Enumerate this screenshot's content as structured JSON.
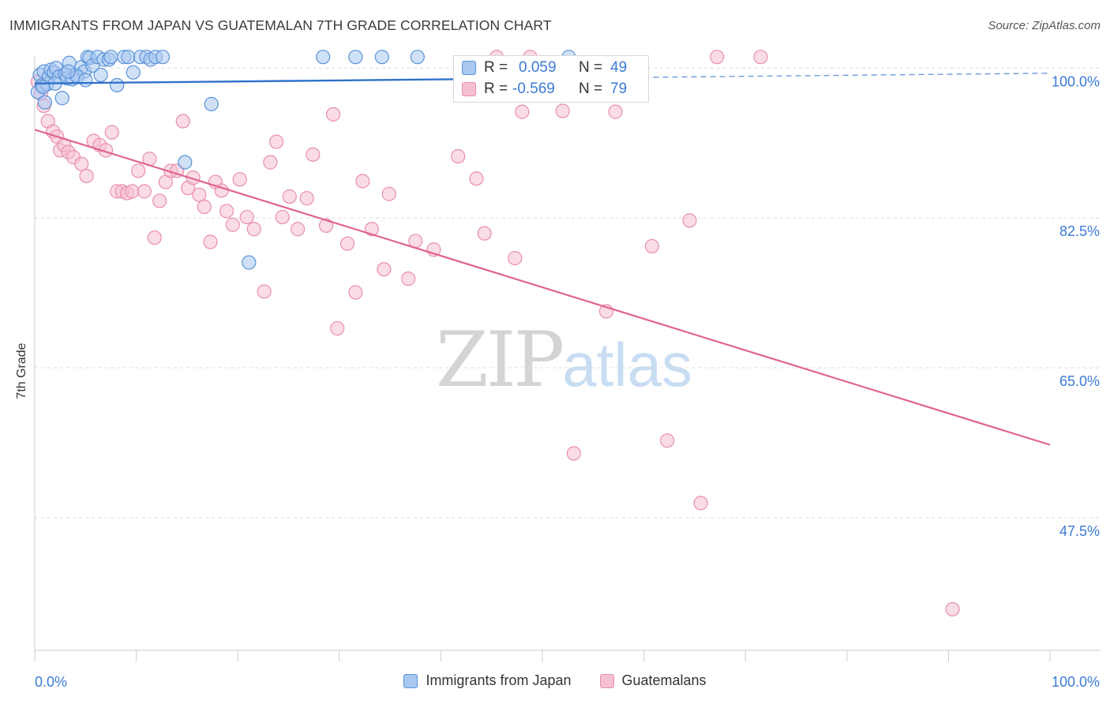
{
  "header": {
    "title": "IMMIGRANTS FROM JAPAN VS GUATEMALAN 7TH GRADE CORRELATION CHART",
    "source": "Source: ZipAtlas.com"
  },
  "watermark": {
    "part1": "ZIP",
    "part2": "atlas"
  },
  "stats": {
    "japan": {
      "r_label": "R =",
      "r_value": "0.059",
      "n_label": "N =",
      "n_value": "49"
    },
    "guatemalan": {
      "r_label": "R =",
      "r_value": "-0.569",
      "n_label": "N =",
      "n_value": "79"
    }
  },
  "legend": {
    "japan_label": "Immigrants from Japan",
    "guatemalan_label": "Guatemalans"
  },
  "colors": {
    "blue_fill": "#a9c8f0",
    "blue_stroke": "#5b93d8",
    "blue_line": "#2f72c9",
    "pink_fill": "#f6c0d2",
    "pink_stroke": "#e98eae",
    "pink_line": "#e0648f",
    "grid": "#dcdcdc",
    "tick_label": "#3a7bd5"
  },
  "chart_data": {
    "type": "scatter",
    "title": "IMMIGRANTS FROM JAPAN VS GUATEMALAN 7TH GRADE CORRELATION CHART",
    "xlabel": "",
    "ylabel": "7th Grade",
    "xlim": [
      0,
      100
    ],
    "ylim": [
      32.0,
      101.5
    ],
    "x_tick_labels": [
      "0.0%",
      "100.0%"
    ],
    "y_ticks": [
      {
        "value": 100.0,
        "label": "100.0%"
      },
      {
        "value": 82.5,
        "label": "82.5%"
      },
      {
        "value": 65.0,
        "label": "65.0%"
      },
      {
        "value": 47.5,
        "label": "47.5%"
      }
    ],
    "series": [
      {
        "name": "Immigrants from Japan",
        "color": "blue",
        "points": [
          [
            0.3,
            97.2
          ],
          [
            0.5,
            99.2
          ],
          [
            0.7,
            98.0
          ],
          [
            0.9,
            99.6
          ],
          [
            1.2,
            98.1
          ],
          [
            1.4,
            99.0
          ],
          [
            1.6,
            99.8
          ],
          [
            1.9,
            99.5
          ],
          [
            2.1,
            100.0
          ],
          [
            2.4,
            99.0
          ],
          [
            2.7,
            96.5
          ],
          [
            3.0,
            99.3
          ],
          [
            3.2,
            98.8
          ],
          [
            3.4,
            100.6
          ],
          [
            3.7,
            98.7
          ],
          [
            4.1,
            99.2
          ],
          [
            4.6,
            100.1
          ],
          [
            4.9,
            99.6
          ],
          [
            5.2,
            101.3
          ],
          [
            5.4,
            101.2
          ],
          [
            5.7,
            100.3
          ],
          [
            6.2,
            101.3
          ],
          [
            6.8,
            101.0
          ],
          [
            7.3,
            101.0
          ],
          [
            7.5,
            101.3
          ],
          [
            8.1,
            98.0
          ],
          [
            8.8,
            101.3
          ],
          [
            9.2,
            101.3
          ],
          [
            9.7,
            99.5
          ],
          [
            10.4,
            101.3
          ],
          [
            11.0,
            101.3
          ],
          [
            11.4,
            101.0
          ],
          [
            11.9,
            101.3
          ],
          [
            12.6,
            101.3
          ],
          [
            17.4,
            95.8
          ],
          [
            14.8,
            89.0
          ],
          [
            21.1,
            77.3
          ],
          [
            28.4,
            101.3
          ],
          [
            31.6,
            101.3
          ],
          [
            34.2,
            101.3
          ],
          [
            37.7,
            101.3
          ],
          [
            52.6,
            101.3
          ],
          [
            4.2,
            99.0
          ],
          [
            5.0,
            98.6
          ],
          [
            6.5,
            99.2
          ],
          [
            2.0,
            98.2
          ],
          [
            0.8,
            97.8
          ],
          [
            1.0,
            96.0
          ],
          [
            3.3,
            99.6
          ]
        ]
      },
      {
        "name": "Guatemalans",
        "color": "pink",
        "points": [
          [
            0.3,
            98.4
          ],
          [
            0.6,
            97.0
          ],
          [
            0.9,
            95.6
          ],
          [
            1.3,
            93.8
          ],
          [
            1.8,
            92.6
          ],
          [
            2.2,
            92.0
          ],
          [
            2.5,
            90.4
          ],
          [
            2.9,
            91.0
          ],
          [
            3.3,
            90.2
          ],
          [
            3.8,
            89.6
          ],
          [
            4.6,
            88.8
          ],
          [
            5.1,
            87.4
          ],
          [
            5.8,
            91.5
          ],
          [
            6.4,
            91.0
          ],
          [
            7.0,
            90.4
          ],
          [
            7.6,
            92.5
          ],
          [
            8.1,
            85.6
          ],
          [
            8.6,
            85.6
          ],
          [
            9.1,
            85.4
          ],
          [
            9.6,
            85.6
          ],
          [
            10.2,
            88.0
          ],
          [
            10.8,
            85.6
          ],
          [
            11.3,
            89.4
          ],
          [
            11.8,
            80.2
          ],
          [
            12.3,
            84.5
          ],
          [
            12.9,
            86.7
          ],
          [
            13.4,
            88.0
          ],
          [
            14.0,
            88.0
          ],
          [
            14.6,
            93.8
          ],
          [
            15.1,
            86.0
          ],
          [
            15.6,
            87.2
          ],
          [
            16.2,
            85.2
          ],
          [
            16.7,
            83.8
          ],
          [
            17.3,
            79.7
          ],
          [
            17.8,
            86.7
          ],
          [
            18.4,
            85.7
          ],
          [
            18.9,
            83.3
          ],
          [
            19.5,
            81.7
          ],
          [
            20.2,
            87.0
          ],
          [
            20.9,
            82.6
          ],
          [
            21.6,
            81.2
          ],
          [
            22.6,
            73.9
          ],
          [
            23.2,
            89.0
          ],
          [
            23.8,
            91.4
          ],
          [
            24.4,
            82.6
          ],
          [
            25.1,
            85.0
          ],
          [
            25.9,
            81.2
          ],
          [
            26.8,
            84.8
          ],
          [
            27.4,
            89.9
          ],
          [
            28.7,
            81.6
          ],
          [
            29.4,
            94.6
          ],
          [
            29.8,
            69.6
          ],
          [
            30.8,
            79.5
          ],
          [
            31.6,
            73.8
          ],
          [
            32.3,
            86.8
          ],
          [
            33.2,
            81.2
          ],
          [
            34.4,
            76.5
          ],
          [
            34.9,
            85.3
          ],
          [
            36.8,
            75.4
          ],
          [
            37.5,
            79.8
          ],
          [
            39.3,
            78.8
          ],
          [
            41.7,
            89.7
          ],
          [
            43.5,
            87.1
          ],
          [
            44.3,
            80.7
          ],
          [
            45.5,
            101.3
          ],
          [
            47.3,
            77.8
          ],
          [
            48.0,
            94.9
          ],
          [
            48.8,
            101.3
          ],
          [
            52.0,
            95.0
          ],
          [
            53.1,
            55.0
          ],
          [
            56.3,
            71.6
          ],
          [
            57.2,
            94.9
          ],
          [
            60.8,
            79.2
          ],
          [
            62.3,
            56.5
          ],
          [
            64.5,
            82.2
          ],
          [
            65.6,
            49.2
          ],
          [
            67.2,
            101.3
          ],
          [
            71.5,
            101.3
          ],
          [
            90.4,
            36.8
          ]
        ]
      }
    ],
    "trendlines": [
      {
        "series": "Immigrants from Japan",
        "x": [
          0,
          100
        ],
        "y": [
          98.2,
          99.4
        ],
        "solid_until_x": 60
      },
      {
        "series": "Guatemalans",
        "x": [
          0,
          100
        ],
        "y": [
          92.8,
          56.0
        ]
      }
    ]
  }
}
